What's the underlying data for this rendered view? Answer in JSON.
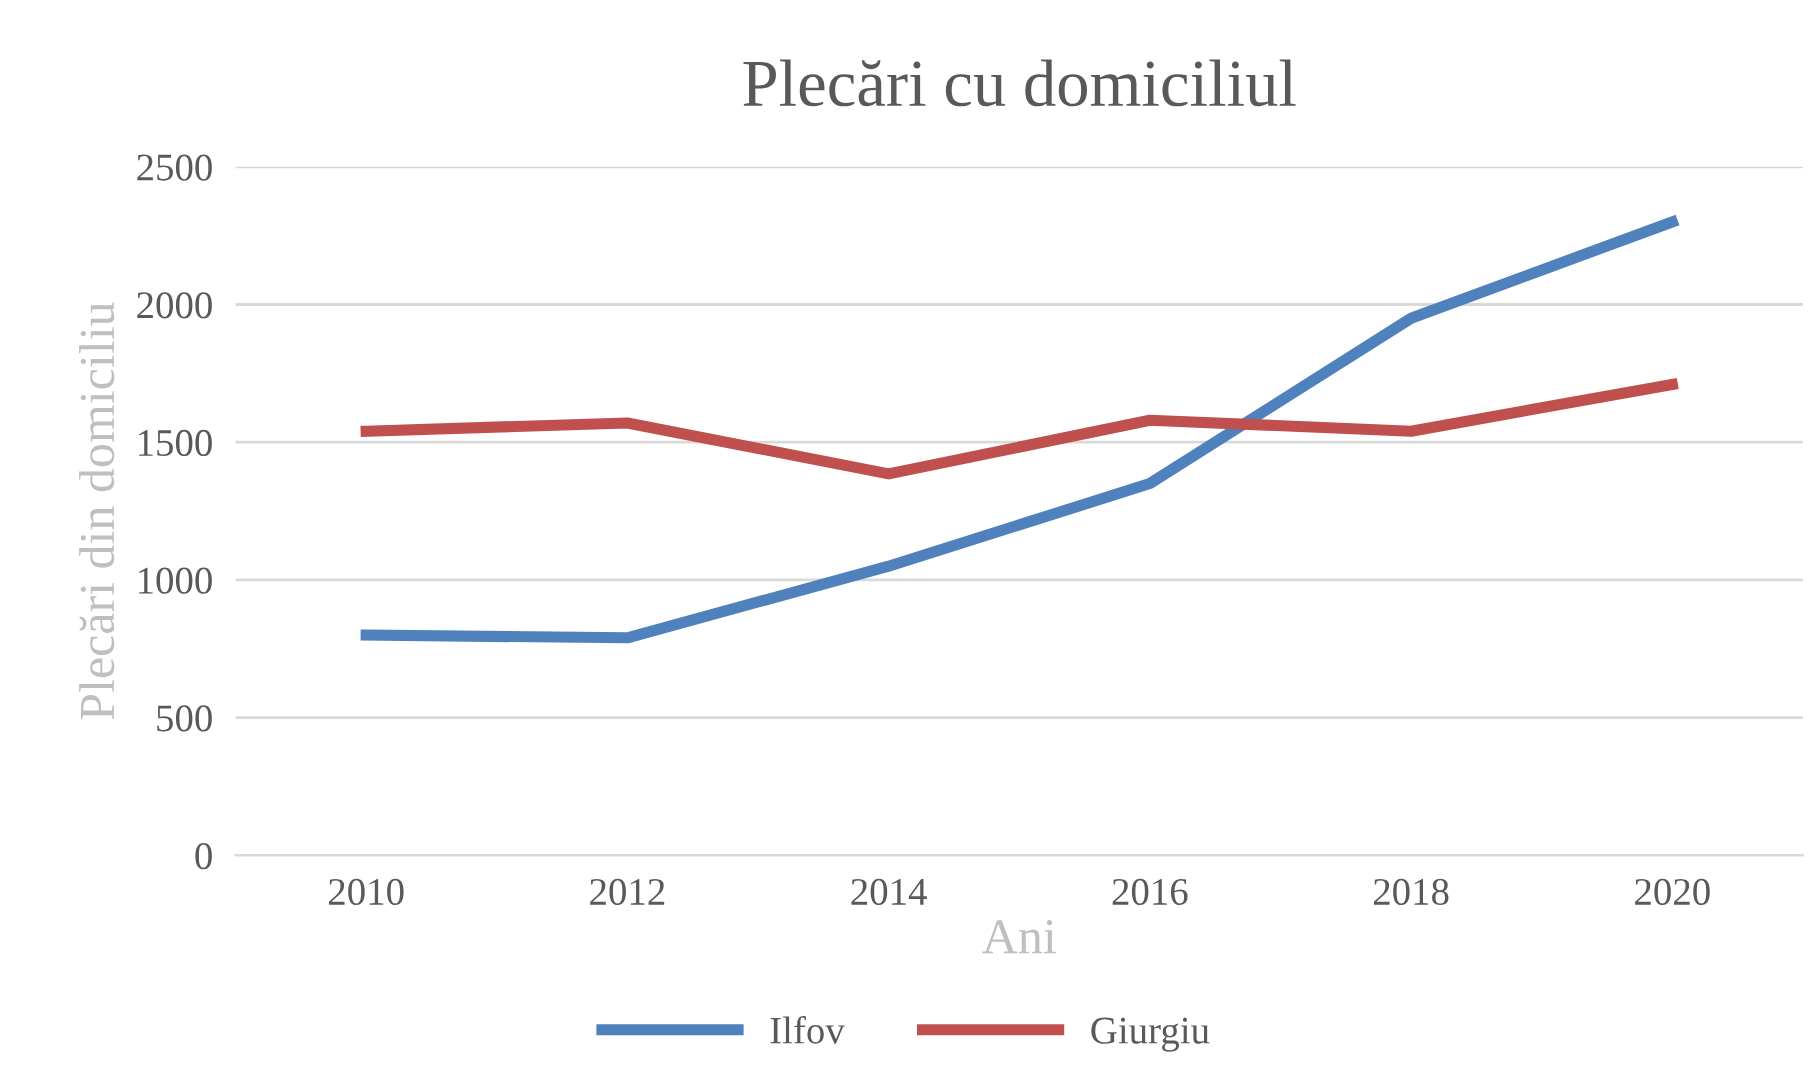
{
  "chart_data": {
    "type": "line",
    "title": "Plecări cu domiciliul",
    "xlabel": "Ani",
    "ylabel": "Plecări din domiciliu",
    "categories": [
      "2010",
      "2012",
      "2014",
      "2016",
      "2018",
      "2020"
    ],
    "series": [
      {
        "name": "Ilfov",
        "color": "#4f81bd",
        "values": [
          800,
          790,
          1050,
          1350,
          1950,
          2300
        ]
      },
      {
        "name": "Giurgiu",
        "color": "#c0504d",
        "values": [
          1540,
          1570,
          1385,
          1580,
          1540,
          1710
        ]
      }
    ],
    "ylim": [
      0,
      2500
    ],
    "yticks": [
      0,
      500,
      1000,
      1500,
      2000,
      2500
    ],
    "grid": "y",
    "legend": "bottom",
    "marker": "none",
    "line_style": "solid"
  }
}
